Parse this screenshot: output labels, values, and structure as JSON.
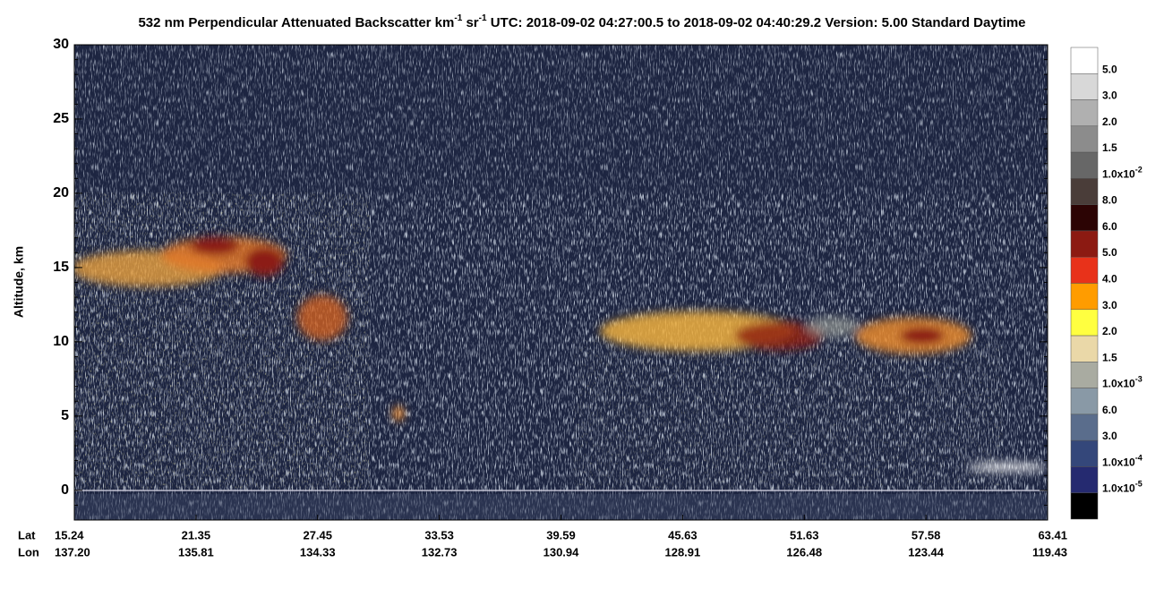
{
  "chart_data": {
    "type": "curtain",
    "title": [
      {
        "text": "532 nm Perpendicular Attenuated Backscatter km"
      },
      {
        "sup": "-1"
      },
      {
        "text": " sr"
      },
      {
        "sup": "-1"
      },
      {
        "text": "  UTC: 2018-09-02 04:27:00.5 to 2018-09-02 04:40:29.2  Version: 5.00 Standard Daytime"
      }
    ],
    "ylabel": "Altitude, km",
    "ylim": [
      -2,
      30
    ],
    "yticks": [
      0,
      5,
      10,
      15,
      20,
      25,
      30
    ],
    "x_row_labels": [
      "Lat",
      "Lon"
    ],
    "lat_labels": [
      "15.24",
      "21.35",
      "27.45",
      "33.53",
      "39.59",
      "45.63",
      "51.63",
      "57.58",
      "63.41"
    ],
    "lon_labels": [
      "137.20",
      "135.81",
      "134.33",
      "132.73",
      "130.94",
      "128.91",
      "126.48",
      "123.44",
      "119.43"
    ],
    "colorbar": {
      "colors": [
        "#ffffff",
        "#d8d8d8",
        "#b0b0b0",
        "#8c8c8c",
        "#676767",
        "#4a3d39",
        "#2c0404",
        "#8c1a12",
        "#e8321a",
        "#ff9c00",
        "#ffff40",
        "#ead8a8",
        "#a9aba1",
        "#8999a6",
        "#5a6d8c",
        "#34477a",
        "#252a70",
        "#000000"
      ],
      "labels": [
        {
          "text": "5.0"
        },
        {
          "text": "3.0"
        },
        {
          "text": "2.0"
        },
        {
          "text": "1.5"
        },
        {
          "text": "1.0x10",
          "sup": "-2"
        },
        {
          "text": "8.0"
        },
        {
          "text": "6.0"
        },
        {
          "text": "5.0"
        },
        {
          "text": "4.0"
        },
        {
          "text": "3.0"
        },
        {
          "text": "2.0"
        },
        {
          "text": "1.5"
        },
        {
          "text": "1.0x10",
          "sup": "-3"
        },
        {
          "text": "6.0"
        },
        {
          "text": "3.0"
        },
        {
          "text": "1.0x10",
          "sup": "-4"
        },
        {
          "text": "1.0x10",
          "sup": "-5"
        }
      ]
    }
  }
}
